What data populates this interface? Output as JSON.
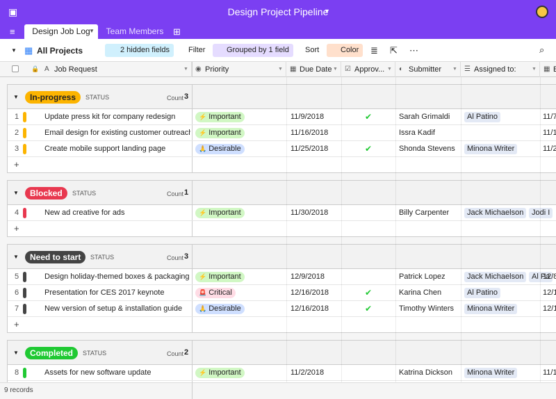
{
  "header": {
    "title": "Design Project Pipeline"
  },
  "tabs": [
    "Design Job Log",
    "Team Members"
  ],
  "toolbar": {
    "view": "All Projects",
    "hidden_fields": "2 hidden fields",
    "filter": "Filter",
    "grouped": "Grouped by 1 field",
    "sort": "Sort",
    "color": "Color"
  },
  "columns": [
    "Job Request",
    "Priority",
    "Due Date",
    "Approv...",
    "Submitter",
    "Assigned to:",
    "E"
  ],
  "groups": [
    {
      "label": "In-progress",
      "field": "STATUS",
      "count_label": "Count",
      "count": 3,
      "color": "#fcb400",
      "text_color": "#222",
      "rows": [
        {
          "num": 1,
          "job": "Update press kit for company redesign",
          "priority": {
            "icon": "⚡",
            "label": "Important",
            "color": "#d1f7c4"
          },
          "due": "11/9/2018",
          "approved": true,
          "submitter": "Sarah Grimaldi",
          "assigned": [
            "Al Patino"
          ],
          "extra": "11/7/"
        },
        {
          "num": 2,
          "job": "Email design for existing customer outreach",
          "priority": {
            "icon": "⚡",
            "label": "Important",
            "color": "#d1f7c4"
          },
          "due": "11/16/2018",
          "approved": false,
          "submitter": "Issra Kadif",
          "assigned": [],
          "extra": "11/1"
        },
        {
          "num": 3,
          "job": "Create mobile support landing page",
          "priority": {
            "icon": "🙏",
            "label": "Desirable",
            "color": "#cfdfff"
          },
          "due": "11/25/2018",
          "approved": true,
          "submitter": "Shonda Stevens",
          "assigned": [
            "Minona Writer"
          ],
          "extra": "11/2"
        }
      ]
    },
    {
      "label": "Blocked",
      "field": "STATUS",
      "count_label": "Count",
      "count": 1,
      "color": "#e8384f",
      "text_color": "#fff",
      "rows": [
        {
          "num": 4,
          "job": "New ad creative for ads",
          "priority": {
            "icon": "⚡",
            "label": "Important",
            "color": "#d1f7c4"
          },
          "due": "11/30/2018",
          "approved": false,
          "submitter": "Billy Carpenter",
          "assigned": [
            "Jack Michaelson",
            "Jodi I"
          ]
        }
      ]
    },
    {
      "label": "Need to start",
      "field": "STATUS",
      "count_label": "Count",
      "count": 3,
      "color": "#444444",
      "text_color": "#fff",
      "rows": [
        {
          "num": 5,
          "job": "Design holiday-themed boxes & packaging",
          "priority": {
            "icon": "⚡",
            "label": "Important",
            "color": "#d1f7c4"
          },
          "due": "12/9/2018",
          "approved": false,
          "submitter": "Patrick Lopez",
          "assigned": [
            "Jack Michaelson",
            "Al Pa"
          ],
          "extra": "12/8"
        },
        {
          "num": 6,
          "job": "Presentation for CES 2017 keynote",
          "priority": {
            "icon": "🚨",
            "label": "Critical",
            "color": "#ffdce5"
          },
          "due": "12/16/2018",
          "approved": true,
          "submitter": "Karina Chen",
          "assigned": [
            "Al Patino"
          ],
          "extra": "12/1"
        },
        {
          "num": 7,
          "job": "New version of setup & installation guide",
          "priority": {
            "icon": "🙏",
            "label": "Desirable",
            "color": "#cfdfff"
          },
          "due": "12/16/2018",
          "approved": true,
          "submitter": "Timothy Winters",
          "assigned": [
            "Minona Writer"
          ],
          "extra": "12/1"
        }
      ]
    },
    {
      "label": "Completed",
      "field": "STATUS",
      "count_label": "Count",
      "count": 2,
      "color": "#20c933",
      "text_color": "#fff",
      "rows": [
        {
          "num": 8,
          "job": "Assets for new software update",
          "priority": {
            "icon": "⚡",
            "label": "Important",
            "color": "#d1f7c4"
          },
          "due": "11/2/2018",
          "approved": false,
          "submitter": "Katrina Dickson",
          "assigned": [
            "Minona Writer"
          ],
          "extra": "11/1"
        }
      ]
    }
  ],
  "footer": "9 records"
}
